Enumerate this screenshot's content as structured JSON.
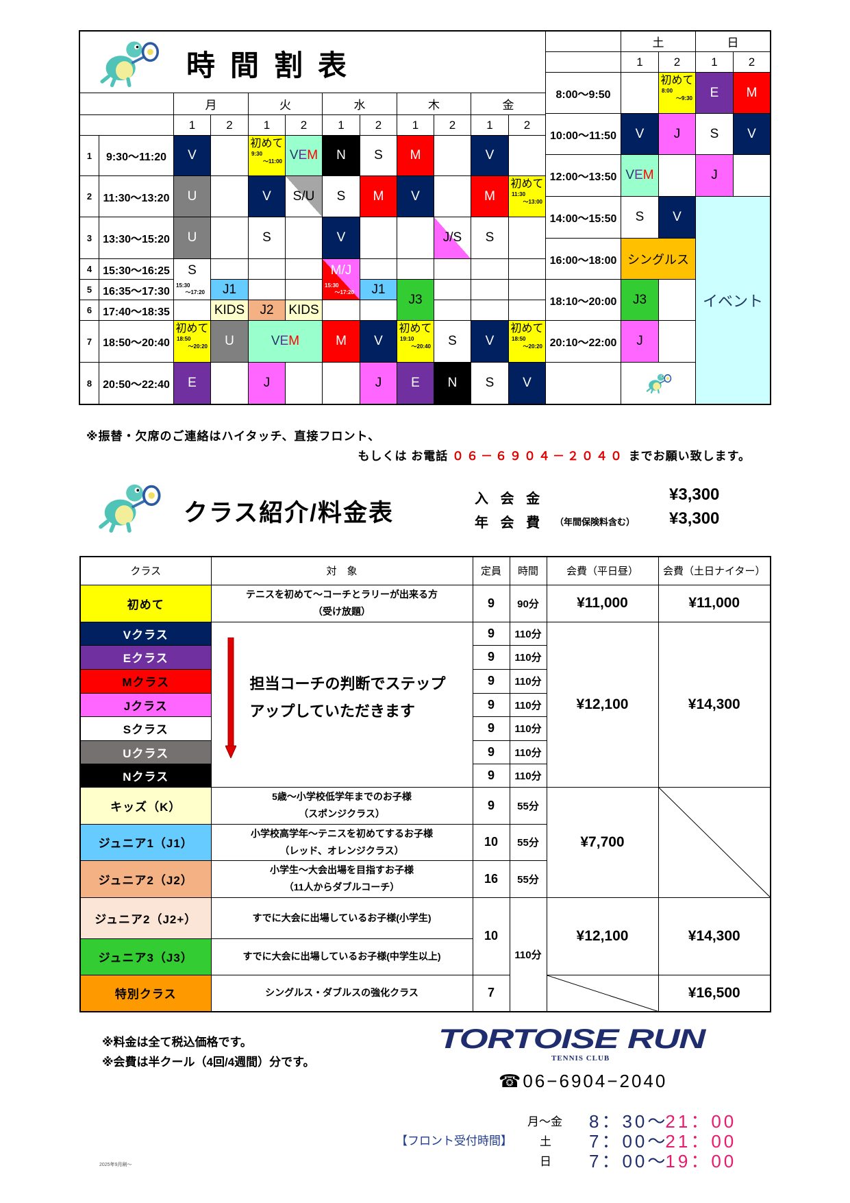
{
  "timetable": {
    "title": "時間割表",
    "weekday": {
      "days": [
        "月",
        "火",
        "水",
        "木",
        "金"
      ],
      "slots": [
        "1",
        "2"
      ],
      "periods": [
        {
          "no": "1",
          "time": "9:30〜11:20"
        },
        {
          "no": "2",
          "time": "11:30〜13:20"
        },
        {
          "no": "3",
          "time": "13:30〜15:20"
        },
        {
          "no": "4",
          "time": "15:30〜16:25"
        },
        {
          "no": "5",
          "time": "16:35〜17:30"
        },
        {
          "no": "6",
          "time": "17:40〜18:35"
        },
        {
          "no": "7",
          "time": "18:50〜20:40"
        },
        {
          "no": "8",
          "time": "20:50〜22:40"
        }
      ],
      "cells": [
        {
          "day": "月",
          "slot": 1,
          "period": 1,
          "label": "V",
          "type": "V"
        },
        {
          "day": "火",
          "slot": 1,
          "period": 1,
          "label": "初めて",
          "type": "first",
          "sub": [
            "9:30",
            "〜11:00"
          ]
        },
        {
          "day": "火",
          "slot": 2,
          "period": 1,
          "label": "VEM",
          "type": "VEM"
        },
        {
          "day": "水",
          "slot": 1,
          "period": 1,
          "label": "N",
          "type": "N"
        },
        {
          "day": "水",
          "slot": 2,
          "period": 1,
          "label": "S",
          "type": "S"
        },
        {
          "day": "木",
          "slot": 1,
          "period": 1,
          "label": "M",
          "type": "M"
        },
        {
          "day": "金",
          "slot": 1,
          "period": 1,
          "label": "V",
          "type": "V"
        },
        {
          "day": "月",
          "slot": 1,
          "period": 2,
          "label": "U",
          "type": "U"
        },
        {
          "day": "火",
          "slot": 1,
          "period": 2,
          "label": "V",
          "type": "V"
        },
        {
          "day": "火",
          "slot": 2,
          "period": 2,
          "label": "S/U",
          "type": "SU"
        },
        {
          "day": "水",
          "slot": 1,
          "period": 2,
          "label": "S",
          "type": "S"
        },
        {
          "day": "水",
          "slot": 2,
          "period": 2,
          "label": "M",
          "type": "M"
        },
        {
          "day": "木",
          "slot": 1,
          "period": 2,
          "label": "V",
          "type": "V"
        },
        {
          "day": "金",
          "slot": 1,
          "period": 2,
          "label": "M",
          "type": "M"
        },
        {
          "day": "金",
          "slot": 2,
          "period": 2,
          "label": "初めて",
          "type": "first",
          "sub": [
            "11:30",
            "〜13:00"
          ]
        },
        {
          "day": "月",
          "slot": 1,
          "period": 3,
          "label": "U",
          "type": "U"
        },
        {
          "day": "火",
          "slot": 1,
          "period": 3,
          "label": "S",
          "type": "S"
        },
        {
          "day": "水",
          "slot": 1,
          "period": 3,
          "label": "V",
          "type": "V"
        },
        {
          "day": "木",
          "slot": 2,
          "period": 3,
          "label": "J/S",
          "type": "JS"
        },
        {
          "day": "金",
          "slot": 1,
          "period": 3,
          "label": "S",
          "type": "S"
        },
        {
          "day": "月",
          "slot": 1,
          "period": 4,
          "to_period": 5,
          "label": "S",
          "type": "S",
          "sub": [
            "15:30",
            "〜17:20"
          ]
        },
        {
          "day": "水",
          "slot": 1,
          "period": 4,
          "to_period": 5,
          "label": "M/J",
          "type": "MJ",
          "sub": [
            "15:30",
            "〜17:20"
          ]
        },
        {
          "day": "月",
          "slot": 2,
          "period": 5,
          "label": "J1",
          "type": "J1"
        },
        {
          "day": "水",
          "slot": 2,
          "period": 5,
          "label": "J1",
          "type": "J1"
        },
        {
          "day": "木",
          "slot": 1,
          "period": 5,
          "to_period": 6,
          "label": "J3",
          "type": "J3"
        },
        {
          "day": "月",
          "slot": 2,
          "period": 6,
          "label": "KIDS",
          "type": "KIDS"
        },
        {
          "day": "火",
          "slot": 1,
          "period": 6,
          "label": "J2",
          "type": "J2"
        },
        {
          "day": "火",
          "slot": 2,
          "period": 6,
          "label": "KIDS",
          "type": "KIDS"
        },
        {
          "day": "月",
          "slot": 1,
          "period": 7,
          "label": "初めて",
          "type": "first",
          "sub": [
            "18:50",
            "〜20:20"
          ]
        },
        {
          "day": "月",
          "slot": 2,
          "period": 7,
          "label": "U",
          "type": "U"
        },
        {
          "day": "火",
          "slot": 1,
          "to_slot": 2,
          "period": 7,
          "label": "VEM",
          "type": "VEM"
        },
        {
          "day": "水",
          "slot": 1,
          "period": 7,
          "label": "M",
          "type": "M"
        },
        {
          "day": "水",
          "slot": 2,
          "period": 7,
          "label": "V",
          "type": "V"
        },
        {
          "day": "木",
          "slot": 1,
          "period": 7,
          "label": "初めて",
          "type": "first",
          "sub": [
            "19:10",
            "〜20:40"
          ]
        },
        {
          "day": "木",
          "slot": 2,
          "period": 7,
          "label": "S",
          "type": "S"
        },
        {
          "day": "金",
          "slot": 1,
          "period": 7,
          "label": "V",
          "type": "V"
        },
        {
          "day": "金",
          "slot": 2,
          "period": 7,
          "label": "初めて",
          "type": "first",
          "sub": [
            "18:50",
            "〜20:20"
          ]
        },
        {
          "day": "月",
          "slot": 1,
          "period": 8,
          "label": "E",
          "type": "E"
        },
        {
          "day": "火",
          "slot": 1,
          "period": 8,
          "label": "J",
          "type": "J"
        },
        {
          "day": "水",
          "slot": 2,
          "period": 8,
          "label": "J",
          "type": "J"
        },
        {
          "day": "木",
          "slot": 1,
          "period": 8,
          "label": "E",
          "type": "E"
        },
        {
          "day": "木",
          "slot": 2,
          "period": 8,
          "label": "N",
          "type": "N"
        },
        {
          "day": "金",
          "slot": 1,
          "period": 8,
          "label": "S",
          "type": "S"
        },
        {
          "day": "金",
          "slot": 2,
          "period": 8,
          "label": "V",
          "type": "V"
        }
      ]
    },
    "weekend": {
      "days": [
        "土",
        "日"
      ],
      "slots": [
        "1",
        "2"
      ],
      "periods": [
        {
          "time": "8:00〜9:50"
        },
        {
          "time": "10:00〜11:50"
        },
        {
          "time": "12:00〜13:50"
        },
        {
          "time": "14:00〜15:50"
        },
        {
          "time": "16:00〜18:00"
        },
        {
          "time": "18:10〜20:00"
        },
        {
          "time": "20:10〜22:00"
        },
        {
          "time": ""
        }
      ],
      "cells": [
        {
          "day": "土",
          "slot": 2,
          "period": 1,
          "label": "初めて",
          "type": "first",
          "sub": [
            "8:00",
            "〜9:30"
          ]
        },
        {
          "day": "日",
          "slot": 1,
          "period": 1,
          "label": "E",
          "type": "E"
        },
        {
          "day": "日",
          "slot": 2,
          "period": 1,
          "label": "M",
          "type": "M"
        },
        {
          "day": "土",
          "slot": 1,
          "period": 2,
          "label": "V",
          "type": "V"
        },
        {
          "day": "土",
          "slot": 2,
          "period": 2,
          "label": "J",
          "type": "J"
        },
        {
          "day": "日",
          "slot": 1,
          "period": 2,
          "label": "S",
          "type": "S"
        },
        {
          "day": "日",
          "slot": 2,
          "period": 2,
          "label": "V",
          "type": "V"
        },
        {
          "day": "土",
          "slot": 1,
          "period": 3,
          "label": "VEM",
          "type": "VEM"
        },
        {
          "day": "日",
          "slot": 1,
          "period": 3,
          "label": "J",
          "type": "J"
        },
        {
          "day": "土",
          "slot": 1,
          "period": 4,
          "label": "S",
          "type": "S"
        },
        {
          "day": "土",
          "slot": 2,
          "period": 4,
          "label": "V",
          "type": "V"
        },
        {
          "day": "日",
          "slot": 1,
          "to_slot": 2,
          "period": 4,
          "to_period": 8,
          "label": "イベント",
          "type": "event"
        },
        {
          "day": "土",
          "slot": 1,
          "to_slot": 2,
          "period": 5,
          "label": "シングルス",
          "type": "singles"
        },
        {
          "day": "土",
          "slot": 1,
          "period": 6,
          "label": "J3",
          "type": "J3"
        },
        {
          "day": "土",
          "slot": 1,
          "period": 7,
          "label": "J",
          "type": "J"
        },
        {
          "day": "土",
          "slot": 1,
          "to_slot": 2,
          "period": 8,
          "label": "",
          "type": "mascot"
        }
      ]
    },
    "type_colors": {
      "V": {
        "bg": "#002060",
        "fg": "#ffffff"
      },
      "E": {
        "bg": "#7030A0",
        "fg": "#ffffff"
      },
      "M": {
        "bg": "#FF0000",
        "fg": "#ffffff"
      },
      "J": {
        "bg": "#FF66FF",
        "fg": "#000000"
      },
      "S": {
        "bg": "#ffffff",
        "fg": "#000000"
      },
      "U": {
        "bg": "#808080",
        "fg": "#ffffff"
      },
      "N": {
        "bg": "#000000",
        "fg": "#ffffff"
      },
      "first": {
        "bg": "#FFFF00",
        "fg": "#000000"
      },
      "VEM": {
        "bg": "#99FFCC",
        "fg": "#002060"
      },
      "J1": {
        "bg": "#66CCFF",
        "fg": "#000000"
      },
      "J2": {
        "bg": "#F4B183",
        "fg": "#000000"
      },
      "J3": {
        "bg": "#33CC33",
        "fg": "#000000"
      },
      "KIDS": {
        "bg": "#FFFFCC",
        "fg": "#000000"
      },
      "singles": {
        "bg": "#FFC000",
        "fg": "#000000"
      },
      "event": {
        "bg": "#CCFFFF",
        "fg": "#1F3864"
      },
      "SU": {
        "bg": "#A6A6A6",
        "fg": "#000000"
      },
      "JS": {
        "bg": "#FF66FF",
        "fg": "#000000"
      },
      "MJ": {
        "bg": "#FF66FF",
        "fg": "#ffffff"
      },
      "mascot": {
        "bg": "#ffffff",
        "fg": "#000000"
      }
    }
  },
  "contact_note": {
    "line1": "※振替・欠席のご連絡はハイタッチ、直接フロント、",
    "line2_pre": "もしくは お電話",
    "phone": "０６－６９０４－２０４０",
    "line2_post": "までお願い致します。"
  },
  "class_section": {
    "title": "クラス紹介/料金表",
    "fees": [
      {
        "label": "入 会 金",
        "note": "",
        "amount": "¥3,300"
      },
      {
        "label": "年 会 費",
        "note": "（年間保険料含む）",
        "amount": "¥3,300"
      }
    ]
  },
  "price_table": {
    "headers": [
      "クラス",
      "対　象",
      "定員",
      "時間",
      "会費（平日昼）",
      "会費（土日ナイター）"
    ],
    "rows": [
      {
        "class": "初めて",
        "color": "#FFFF00",
        "target": [
          "テニスを初めて〜コーチとラリーが出来る方",
          "（受け放題）"
        ],
        "capacity": "9",
        "duration": "90分",
        "fee_weekday": "¥11,000",
        "fee_weekend": "¥11,000"
      },
      {
        "class": "Vクラス",
        "color": "#002060",
        "capacity": "9",
        "duration": "110分"
      },
      {
        "class": "Eクラス",
        "color": "#7030A0",
        "capacity": "9",
        "duration": "110分"
      },
      {
        "class": "Mクラス",
        "color": "#FF0000",
        "capacity": "9",
        "duration": "110分"
      },
      {
        "class": "Jクラス",
        "color": "#FF66FF",
        "capacity": "9",
        "duration": "110分"
      },
      {
        "class": "Sクラス",
        "color": "#FFFFFF",
        "capacity": "9",
        "duration": "110分"
      },
      {
        "class": "Uクラス",
        "color": "#767171",
        "capacity": "9",
        "duration": "110分"
      },
      {
        "class": "Nクラス",
        "color": "#000000",
        "capacity": "9",
        "duration": "110分"
      },
      {
        "class": "キッズ（K）",
        "color": "#FFFFCC",
        "target": [
          "5歳〜小学校低学年までのお子様",
          "（スポンジクラス）"
        ],
        "capacity": "9",
        "duration": "55分"
      },
      {
        "class": "ジュニア1（J1）",
        "color": "#66CCFF",
        "target": [
          "小学校高学年〜テニスを初めてするお子様",
          "（レッド、オレンジクラス）"
        ],
        "capacity": "10",
        "duration": "55分"
      },
      {
        "class": "ジュニア2（J2）",
        "color": "#F4B183",
        "target": [
          "小学生〜大会出場を目指すお子様",
          "（11人からダブルコーチ）"
        ],
        "capacity": "16",
        "duration": "55分"
      },
      {
        "class": "ジュニア2（J2+）",
        "color": "#FBE5D6",
        "target": [
          "すでに大会に出場しているお子様(小学生)"
        ]
      },
      {
        "class": "ジュニア3（J3）",
        "color": "#33CC33",
        "target": [
          "すでに大会に出場しているお子様(中学生以上)"
        ]
      },
      {
        "class": "特別クラス",
        "color": "#FF9900",
        "target": [
          "シングルス・ダブルスの強化クラス"
        ],
        "capacity": "7",
        "fee_weekend": "¥16,500"
      }
    ],
    "step_up_text": [
      "担当コーチの判断でステップ",
      "アップしていただきます"
    ],
    "adult_fee_weekday": "¥12,100",
    "adult_fee_weekend": "¥14,300",
    "junior_fee_weekday": "¥7,700",
    "advanced_capacity": "10",
    "advanced_duration": "110分",
    "advanced_fee_weekday": "¥12,100",
    "advanced_fee_weekend": "¥14,300"
  },
  "footer": {
    "notes": [
      "※料金は全て税込価格です。",
      "※会費は半クール（4回/4週間）分です。"
    ],
    "logo_text": "TORTOISE RUN",
    "logo_sub": "TENNIS CLUB",
    "phone": "☎06−6904−2040",
    "hours_label": "【フロント受付時間】",
    "hours": [
      {
        "days": "月〜金",
        "open": "8：30",
        "sep": "〜",
        "close": "21：00"
      },
      {
        "days": "土",
        "open": "7：00",
        "sep": "〜",
        "close": "21：00"
      },
      {
        "days": "日",
        "open": "7：00",
        "sep": "〜",
        "close": "19：00"
      }
    ],
    "print_date": "2025年9月刷〜"
  }
}
